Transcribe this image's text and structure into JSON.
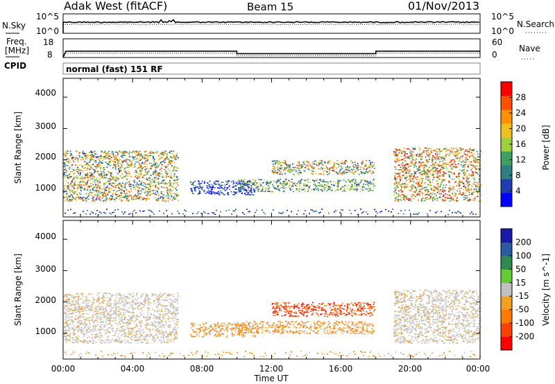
{
  "header": {
    "station": "Adak West (fitACF)",
    "beam": "Beam 15",
    "date": "01/Nov/2013"
  },
  "nsky_panel": {
    "label": "N.Sky",
    "ticks": [
      "10^5",
      "10^0"
    ],
    "right_label": "N.Search",
    "right_ticks": [
      "10^5",
      "10^0"
    ]
  },
  "freq_panel": {
    "label_line1": "Freq.",
    "label_line2": "[MHz]",
    "ticks": [
      "18",
      "8"
    ],
    "right_label": "Nave",
    "right_ticks": [
      "60",
      "0"
    ],
    "freq_steps": [
      {
        "t0": 0.15,
        "t1": 10.0,
        "mhz": 10.6
      },
      {
        "t0": 10.0,
        "t1": 18.0,
        "mhz": 9.0
      },
      {
        "t0": 18.0,
        "t1": 24.0,
        "mhz": 10.6
      }
    ]
  },
  "cpid": {
    "label": "CPID",
    "text": "normal (fast) 151 RF"
  },
  "xaxis": {
    "label": "Time UT",
    "ticks": [
      "00:00",
      "04:00",
      "08:00",
      "12:00",
      "16:00",
      "20:00",
      "00:00"
    ]
  },
  "power_panel": {
    "ylabel": "Slant Range [km]",
    "yticks": [
      "4000",
      "3000",
      "2000",
      "1000"
    ],
    "cbar_label": "Power [dB]",
    "cbar_ticks": [
      "28",
      "24",
      "20",
      "16",
      "12",
      "8",
      "4"
    ]
  },
  "velocity_panel": {
    "ylabel": "Slant Range [km]",
    "yticks": [
      "4000",
      "3000",
      "2000",
      "1000"
    ],
    "cbar_label": "Velocity [m s^-1]",
    "cbar_ticks": [
      "200",
      "100",
      "50",
      "15",
      "-15",
      "-50",
      "-100",
      "-200"
    ]
  },
  "colors": {
    "power_scale": [
      "#0000ff",
      "#1f3fb0",
      "#2f7f80",
      "#3fa060",
      "#9fcf3f",
      "#f0c020",
      "#ff9000",
      "#ff5000",
      "#ff0000"
    ],
    "velocity_scale": [
      "#ff0000",
      "#ff4000",
      "#ff7a00",
      "#f2a020",
      "#c0c0c0",
      "#66cc33",
      "#2f8a4f",
      "#2a5aa0",
      "#1a1aa8"
    ]
  },
  "chart_data": [
    {
      "type": "heatmap",
      "title": "",
      "xlabel": "Time UT",
      "ylabel": "Slant Range [km]",
      "xlim": [
        0,
        24
      ],
      "ylim": [
        180,
        4600
      ],
      "value_label": "Power [dB]",
      "value_range": [
        0,
        32
      ],
      "regions": [
        {
          "t0": 0.0,
          "t1": 6.6,
          "r0": 700,
          "r1": 2300,
          "level": "moderate-high",
          "peak_db": 28
        },
        {
          "t0": 7.3,
          "t1": 11.0,
          "r0": 900,
          "r1": 1350,
          "level": "low",
          "peak_db": 10
        },
        {
          "t0": 10.0,
          "t1": 17.9,
          "r0": 1000,
          "r1": 1400,
          "level": "moderate",
          "peak_db": 20
        },
        {
          "t0": 12.0,
          "t1": 17.9,
          "r0": 1550,
          "r1": 2000,
          "level": "moderate-high",
          "peak_db": 24
        },
        {
          "t0": 19.0,
          "t1": 24.0,
          "r0": 700,
          "r1": 2400,
          "level": "high",
          "peak_db": 30
        }
      ]
    },
    {
      "type": "heatmap",
      "title": "",
      "xlabel": "Time UT",
      "ylabel": "Slant Range [km]",
      "xlim": [
        0,
        24
      ],
      "ylim": [
        180,
        4600
      ],
      "value_label": "Velocity [m s^-1]",
      "value_range": [
        -200,
        200
      ],
      "regions": [
        {
          "t0": 0.0,
          "t1": 6.6,
          "r0": 700,
          "r1": 2300,
          "level": "ground-scatter",
          "velocity": 0
        },
        {
          "t0": 7.3,
          "t1": 11.0,
          "r0": 900,
          "r1": 1350,
          "level": "away",
          "velocity": -60
        },
        {
          "t0": 10.0,
          "t1": 17.9,
          "r0": 1000,
          "r1": 1400,
          "level": "away",
          "velocity": -70
        },
        {
          "t0": 12.0,
          "t1": 17.9,
          "r0": 1550,
          "r1": 2000,
          "level": "strong-away",
          "velocity": -150
        },
        {
          "t0": 19.0,
          "t1": 24.0,
          "r0": 700,
          "r1": 2400,
          "level": "ground-scatter",
          "velocity": 0
        }
      ]
    }
  ]
}
